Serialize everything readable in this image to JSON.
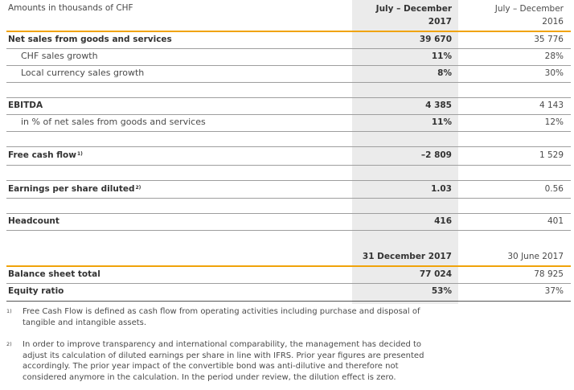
{
  "header": {
    "units": "Amounts in thousands of CHF",
    "col1_line1": "July – December",
    "col1_line2": "2017",
    "col2_line1": "July – December",
    "col2_line2": "2016"
  },
  "rows": {
    "net_sales": {
      "label": "Net sales from goods and services",
      "v2017": "39 670",
      "v2016": "35 776"
    },
    "chf_growth": {
      "label": "CHF sales growth",
      "v2017": "11%",
      "v2016": "28%"
    },
    "local_growth": {
      "label": "Local currency sales growth",
      "v2017": "8%",
      "v2016": "30%"
    },
    "ebitda": {
      "label": "EBITDA",
      "v2017": "4 385",
      "v2016": "4 143"
    },
    "ebitda_pct": {
      "label": "in % of net sales from goods and services",
      "v2017": "11%",
      "v2016": "12%"
    },
    "fcf": {
      "label": "Free cash flow",
      "sup": "1)",
      "v2017": "–2 809",
      "v2016": "1 529"
    },
    "eps": {
      "label": "Earnings per share diluted",
      "sup": "2)",
      "v2017": "1.03",
      "v2016": "0.56"
    },
    "headcount": {
      "label": "Headcount",
      "v2017": "416",
      "v2016": "401"
    }
  },
  "balance_header": {
    "col1": "31 December 2017",
    "col2": "30 June 2017"
  },
  "balance_rows": {
    "total": {
      "label": "Balance sheet total",
      "v1": "77 024",
      "v2": "78 925"
    },
    "equity": {
      "label": "Equity ratio",
      "v1": "53%",
      "v2": "37%"
    }
  },
  "footnotes": [
    {
      "mark": "1)",
      "text": "Free Cash Flow is defined as cash flow from operating activities including purchase and disposal of tangible and intangible assets."
    },
    {
      "mark": "2)",
      "text": "In order to improve transparency and international comparability, the management has decided to adjust its calculation of diluted earnings per share in line with IFRS. Prior year figures are presented accordingly. The prior year impact of the convertible bond was anti-dilutive and therefore not considered anymore in the calculation. In the period under review, the dilution effect is zero."
    }
  ],
  "colors": {
    "accent": "#f0a30a",
    "shade": "#ebebeb",
    "rule": "#9e9e9e"
  }
}
